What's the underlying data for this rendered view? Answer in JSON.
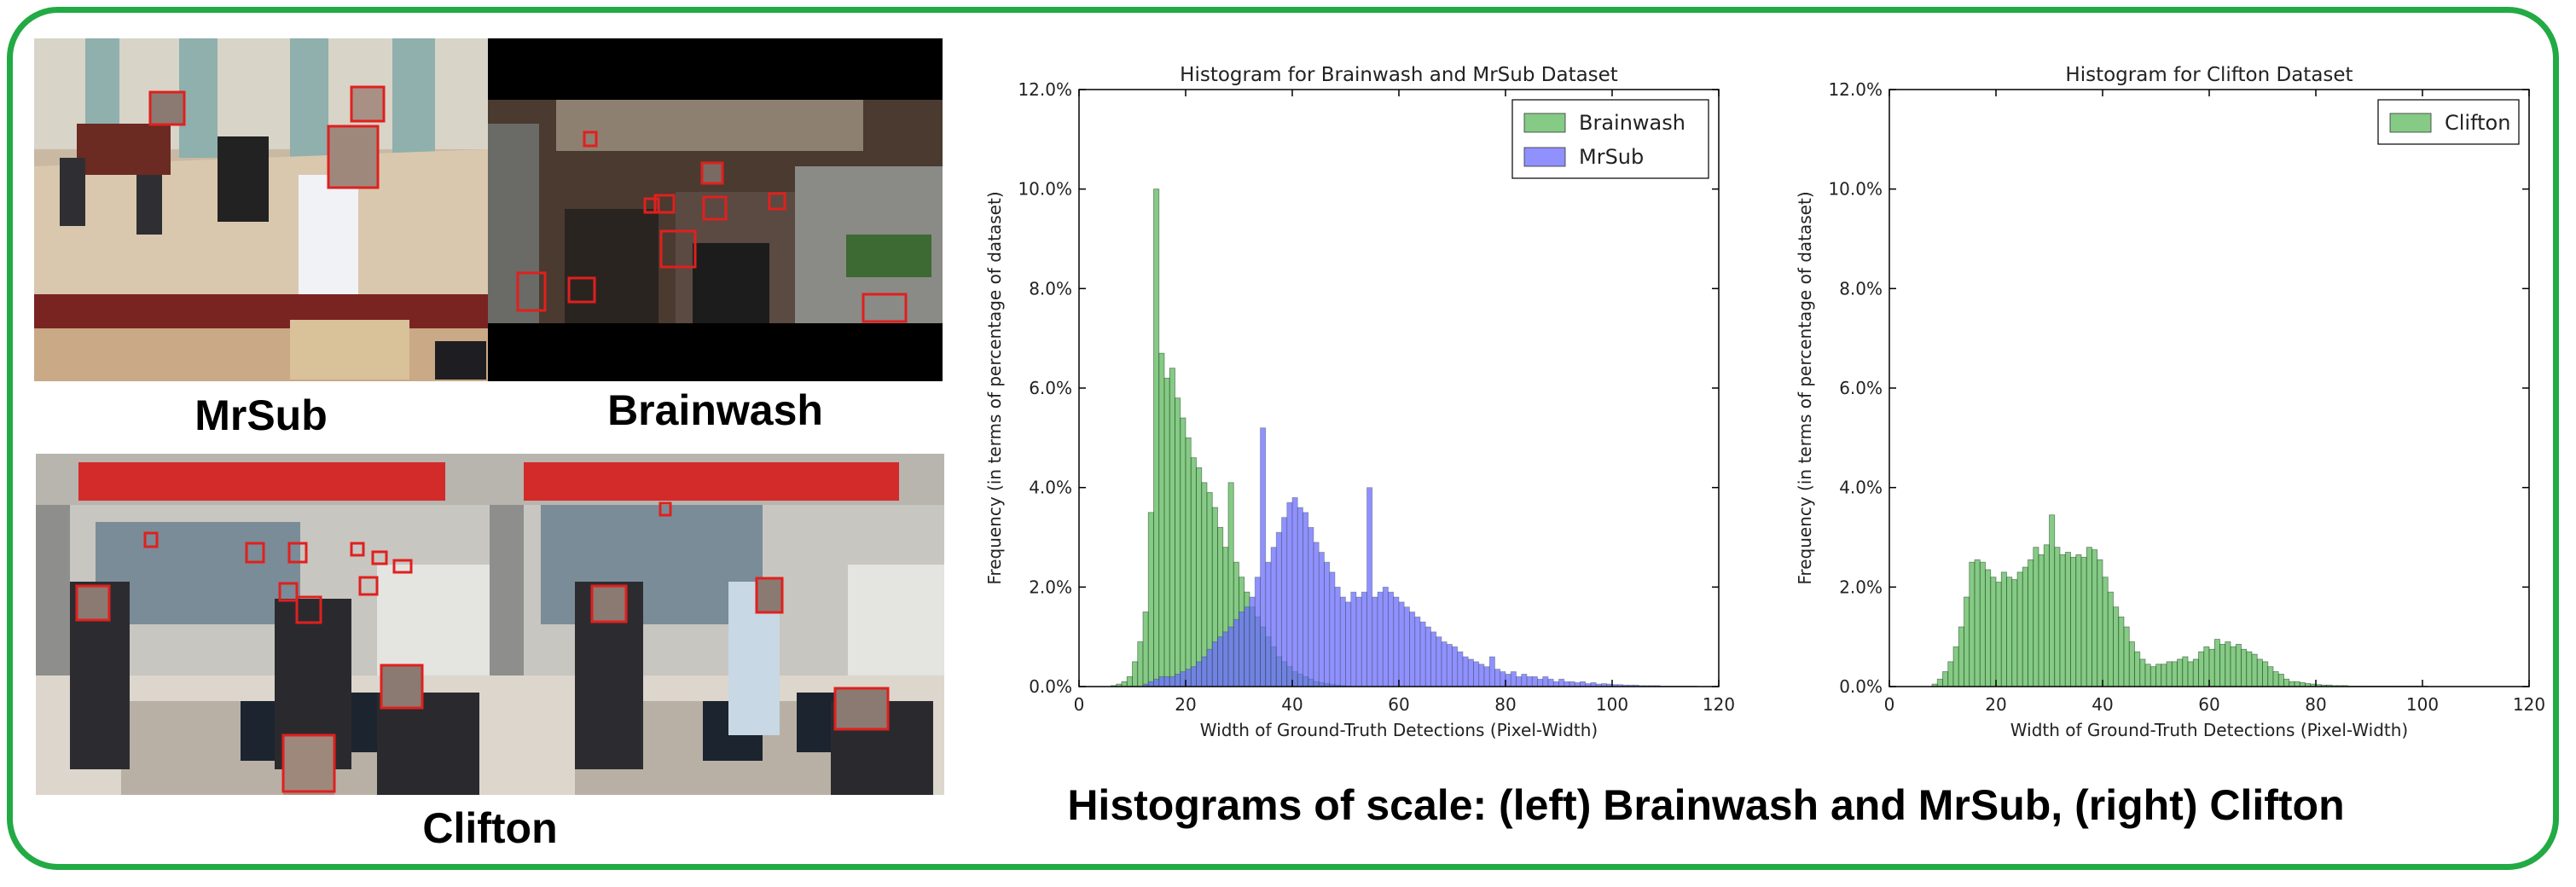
{
  "panels": {
    "mrsub": {
      "label": "MrSub"
    },
    "brainwash": {
      "label": "Brainwash"
    },
    "clifton": {
      "label": "Clifton"
    }
  },
  "figure_caption": "Histograms of scale: (left) Brainwash and MrSub, (right) Clifton",
  "colors": {
    "frame": "#22aa44",
    "green_bar": "#5cb85c",
    "blue_bar": "#6b6bff",
    "box": "#e0201e"
  },
  "chart_data": [
    {
      "type": "bar",
      "title": "Histogram for Brainwash and MrSub Dataset",
      "xlabel": "Width of Ground-Truth Detections (Pixel-Width)",
      "ylabel": "Frequency (in terms of percentage of dataset)",
      "xlim": [
        0,
        120
      ],
      "ylim": [
        0,
        12
      ],
      "xticks": [
        "0",
        "20",
        "40",
        "60",
        "80",
        "100",
        "120"
      ],
      "yticks": [
        "0.0%",
        "2.0%",
        "4.0%",
        "6.0%",
        "8.0%",
        "10.0%",
        "12.0%"
      ],
      "legend_position": "top-right",
      "grid": false,
      "bin_width": 1,
      "series": [
        {
          "name": "Brainwash",
          "color": "#5cb85c",
          "x": [
            6,
            7,
            8,
            9,
            10,
            11,
            12,
            13,
            14,
            15,
            16,
            17,
            18,
            19,
            20,
            21,
            22,
            23,
            24,
            25,
            26,
            27,
            28,
            29,
            30,
            31,
            32,
            33,
            34,
            35,
            36,
            37,
            38,
            39,
            40,
            41,
            42,
            43,
            44,
            45,
            46,
            47,
            48,
            49,
            50
          ],
          "values": [
            0.02,
            0.05,
            0.1,
            0.2,
            0.5,
            0.9,
            1.5,
            3.5,
            10.0,
            6.7,
            6.2,
            6.4,
            5.8,
            5.4,
            5.0,
            4.6,
            4.4,
            4.1,
            3.9,
            3.6,
            3.2,
            2.8,
            4.1,
            2.5,
            2.2,
            1.9,
            1.6,
            1.4,
            1.2,
            1.0,
            0.8,
            0.6,
            0.5,
            0.4,
            0.3,
            0.25,
            0.2,
            0.15,
            0.1,
            0.08,
            0.06,
            0.04,
            0.03,
            0.02,
            0.01
          ]
        },
        {
          "name": "MrSub",
          "color": "#6b6bff",
          "x": [
            12,
            13,
            14,
            15,
            16,
            17,
            18,
            19,
            20,
            21,
            22,
            23,
            24,
            25,
            26,
            27,
            28,
            29,
            30,
            31,
            32,
            33,
            34,
            35,
            36,
            37,
            38,
            39,
            40,
            41,
            42,
            43,
            44,
            45,
            46,
            47,
            48,
            49,
            50,
            51,
            52,
            53,
            54,
            55,
            56,
            57,
            58,
            59,
            60,
            61,
            62,
            63,
            64,
            65,
            66,
            67,
            68,
            69,
            70,
            71,
            72,
            73,
            74,
            75,
            76,
            77,
            78,
            79,
            80,
            81,
            82,
            83,
            84,
            85,
            86,
            87,
            88,
            89,
            90,
            91,
            92,
            93,
            94,
            95,
            96,
            97,
            98,
            99,
            100,
            101,
            102,
            103,
            104,
            105,
            106,
            107,
            108,
            109,
            110,
            111,
            112,
            113,
            114,
            115
          ],
          "values": [
            0.05,
            0.1,
            0.15,
            0.2,
            0.2,
            0.2,
            0.25,
            0.3,
            0.35,
            0.4,
            0.5,
            0.6,
            0.75,
            0.9,
            1.0,
            1.1,
            1.2,
            1.35,
            1.5,
            1.6,
            1.8,
            2.2,
            5.2,
            2.5,
            2.8,
            3.1,
            3.4,
            3.7,
            3.8,
            3.6,
            3.5,
            3.2,
            2.9,
            2.7,
            2.5,
            2.3,
            2.0,
            1.8,
            1.7,
            1.9,
            1.8,
            1.9,
            4.0,
            1.8,
            1.9,
            2.0,
            1.9,
            1.8,
            1.7,
            1.6,
            1.5,
            1.4,
            1.3,
            1.2,
            1.1,
            1.0,
            0.9,
            0.85,
            0.8,
            0.7,
            0.6,
            0.55,
            0.5,
            0.45,
            0.4,
            0.6,
            0.35,
            0.3,
            0.25,
            0.3,
            0.2,
            0.25,
            0.2,
            0.2,
            0.15,
            0.2,
            0.15,
            0.1,
            0.15,
            0.1,
            0.1,
            0.08,
            0.1,
            0.06,
            0.08,
            0.05,
            0.06,
            0.05,
            0.04,
            0.04,
            0.03,
            0.03,
            0.03,
            0.02,
            0.02,
            0.02,
            0.02,
            0.01,
            0.01,
            0.01,
            0.01,
            0.01,
            0.01,
            0.01
          ]
        }
      ]
    },
    {
      "type": "bar",
      "title": "Histogram for Clifton Dataset",
      "xlabel": "Width of Ground-Truth Detections (Pixel-Width)",
      "ylabel": "Frequency (in terms of percentage of dataset)",
      "xlim": [
        0,
        120
      ],
      "ylim": [
        0,
        12
      ],
      "xticks": [
        "0",
        "20",
        "40",
        "60",
        "80",
        "100",
        "120"
      ],
      "yticks": [
        "0.0%",
        "2.0%",
        "4.0%",
        "6.0%",
        "8.0%",
        "10.0%",
        "12.0%"
      ],
      "legend_position": "top-right",
      "grid": false,
      "bin_width": 1,
      "series": [
        {
          "name": "Clifton",
          "color": "#5cb85c",
          "x": [
            8,
            9,
            10,
            11,
            12,
            13,
            14,
            15,
            16,
            17,
            18,
            19,
            20,
            21,
            22,
            23,
            24,
            25,
            26,
            27,
            28,
            29,
            30,
            31,
            32,
            33,
            34,
            35,
            36,
            37,
            38,
            39,
            40,
            41,
            42,
            43,
            44,
            45,
            46,
            47,
            48,
            49,
            50,
            51,
            52,
            53,
            54,
            55,
            56,
            57,
            58,
            59,
            60,
            61,
            62,
            63,
            64,
            65,
            66,
            67,
            68,
            69,
            70,
            71,
            72,
            73,
            74,
            75,
            76,
            77,
            78,
            79,
            80,
            81,
            82,
            83,
            84,
            85,
            86,
            87,
            88,
            89,
            90,
            91,
            92,
            93,
            94,
            95,
            96,
            97,
            98,
            99,
            100
          ],
          "values": [
            0.05,
            0.15,
            0.3,
            0.5,
            0.8,
            1.2,
            1.8,
            2.5,
            2.55,
            2.5,
            2.35,
            2.2,
            2.1,
            2.3,
            2.2,
            2.15,
            2.3,
            2.4,
            2.55,
            2.8,
            2.65,
            2.85,
            3.45,
            2.8,
            2.65,
            2.7,
            2.6,
            2.65,
            2.6,
            2.8,
            2.75,
            2.55,
            2.2,
            1.9,
            1.6,
            1.4,
            1.2,
            0.9,
            0.7,
            0.55,
            0.45,
            0.4,
            0.45,
            0.45,
            0.5,
            0.5,
            0.55,
            0.6,
            0.5,
            0.55,
            0.7,
            0.8,
            0.75,
            0.95,
            0.85,
            0.9,
            0.8,
            0.85,
            0.75,
            0.7,
            0.65,
            0.55,
            0.5,
            0.4,
            0.3,
            0.25,
            0.15,
            0.1,
            0.1,
            0.08,
            0.06,
            0.05,
            0.04,
            0.03,
            0.03,
            0.02,
            0.02,
            0.02,
            0.01,
            0.01,
            0.01,
            0.01,
            0.01,
            0.01,
            0.01,
            0.01,
            0.01,
            0.01,
            0.01,
            0.01,
            0.01,
            0.01,
            0.01
          ]
        }
      ]
    }
  ]
}
